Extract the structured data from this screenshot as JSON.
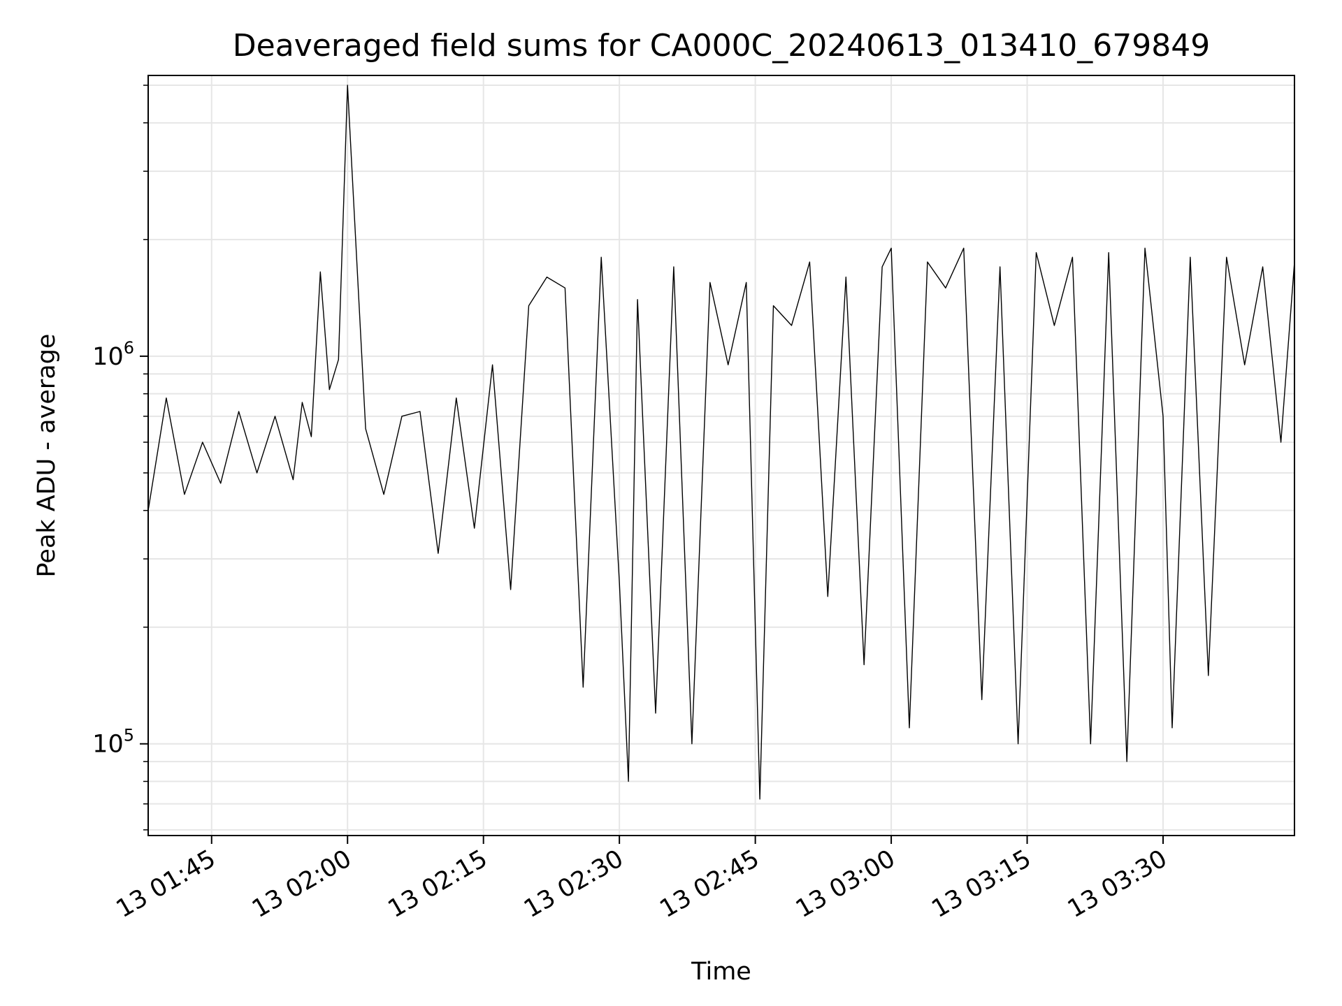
{
  "chart_data": {
    "type": "line",
    "title": "Deaveraged field sums for CA000C_20240613_013410_679849",
    "xlabel": "Time",
    "ylabel": "Peak ADU - average",
    "yscale": "log",
    "grid": true,
    "line_color": "#000000",
    "grid_color": "#e6e6e6",
    "xlim": [
      "2024-06-13 01:38:00",
      "2024-06-13 03:44:30"
    ],
    "ylim": [
      58000,
      5300000
    ],
    "x_ticks": [
      {
        "t": "2024-06-13 01:45:00",
        "label": "13 01:45"
      },
      {
        "t": "2024-06-13 02:00:00",
        "label": "13 02:00"
      },
      {
        "t": "2024-06-13 02:15:00",
        "label": "13 02:15"
      },
      {
        "t": "2024-06-13 02:30:00",
        "label": "13 02:30"
      },
      {
        "t": "2024-06-13 02:45:00",
        "label": "13 02:45"
      },
      {
        "t": "2024-06-13 03:00:00",
        "label": "13 03:00"
      },
      {
        "t": "2024-06-13 03:15:00",
        "label": "13 03:15"
      },
      {
        "t": "2024-06-13 03:30:00",
        "label": "13 03:30"
      }
    ],
    "y_ticks": [
      {
        "value": 100000,
        "base": "10",
        "exp": "5"
      },
      {
        "value": 1000000,
        "base": "10",
        "exp": "6"
      }
    ],
    "series": [
      {
        "x": [
          "2024-06-13 01:38:00",
          "2024-06-13 01:40:00",
          "2024-06-13 01:42:00",
          "2024-06-13 01:44:00",
          "2024-06-13 01:46:00",
          "2024-06-13 01:48:00",
          "2024-06-13 01:50:00",
          "2024-06-13 01:52:00",
          "2024-06-13 01:54:00",
          "2024-06-13 01:55:00",
          "2024-06-13 01:56:00",
          "2024-06-13 01:57:00",
          "2024-06-13 01:58:00",
          "2024-06-13 01:59:00",
          "2024-06-13 02:00:00",
          "2024-06-13 02:02:00",
          "2024-06-13 02:04:00",
          "2024-06-13 02:06:00",
          "2024-06-13 02:08:00",
          "2024-06-13 02:10:00",
          "2024-06-13 02:12:00",
          "2024-06-13 02:14:00",
          "2024-06-13 02:16:00",
          "2024-06-13 02:18:00",
          "2024-06-13 02:20:00",
          "2024-06-13 02:22:00",
          "2024-06-13 02:24:00",
          "2024-06-13 02:26:00",
          "2024-06-13 02:28:00",
          "2024-06-13 02:30:00",
          "2024-06-13 02:31:00",
          "2024-06-13 02:32:00",
          "2024-06-13 02:34:00",
          "2024-06-13 02:36:00",
          "2024-06-13 02:38:00",
          "2024-06-13 02:40:00",
          "2024-06-13 02:42:00",
          "2024-06-13 02:44:00",
          "2024-06-13 02:45:30",
          "2024-06-13 02:47:00",
          "2024-06-13 02:49:00",
          "2024-06-13 02:51:00",
          "2024-06-13 02:53:00",
          "2024-06-13 02:55:00",
          "2024-06-13 02:57:00",
          "2024-06-13 02:59:00",
          "2024-06-13 03:00:00",
          "2024-06-13 03:02:00",
          "2024-06-13 03:04:00",
          "2024-06-13 03:06:00",
          "2024-06-13 03:08:00",
          "2024-06-13 03:10:00",
          "2024-06-13 03:12:00",
          "2024-06-13 03:14:00",
          "2024-06-13 03:16:00",
          "2024-06-13 03:18:00",
          "2024-06-13 03:20:00",
          "2024-06-13 03:22:00",
          "2024-06-13 03:24:00",
          "2024-06-13 03:26:00",
          "2024-06-13 03:28:00",
          "2024-06-13 03:30:00",
          "2024-06-13 03:31:00",
          "2024-06-13 03:33:00",
          "2024-06-13 03:35:00",
          "2024-06-13 03:37:00",
          "2024-06-13 03:39:00",
          "2024-06-13 03:41:00",
          "2024-06-13 03:43:00",
          "2024-06-13 03:44:30"
        ],
        "values": [
          400000,
          780000,
          440000,
          600000,
          470000,
          720000,
          500000,
          700000,
          480000,
          760000,
          620000,
          1650000,
          820000,
          980000,
          5000000,
          650000,
          440000,
          700000,
          720000,
          310000,
          780000,
          360000,
          950000,
          250000,
          1350000,
          1600000,
          1500000,
          140000,
          1800000,
          260000,
          80000,
          1400000,
          120000,
          1700000,
          100000,
          1550000,
          950000,
          1550000,
          72000,
          1350000,
          1200000,
          1750000,
          240000,
          1600000,
          160000,
          1700000,
          1900000,
          110000,
          1750000,
          1500000,
          1900000,
          130000,
          1700000,
          100000,
          1850000,
          1200000,
          1800000,
          100000,
          1850000,
          90000,
          1900000,
          700000,
          110000,
          1800000,
          150000,
          1800000,
          950000,
          1700000,
          600000,
          1750000
        ]
      }
    ]
  }
}
